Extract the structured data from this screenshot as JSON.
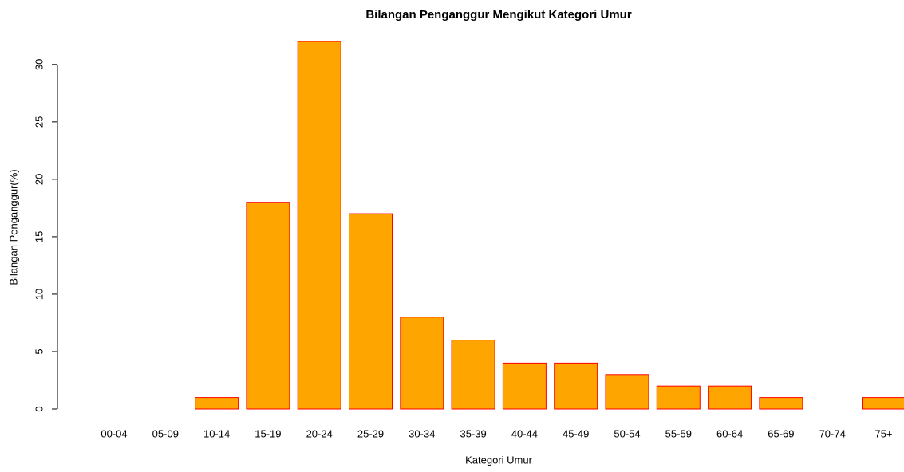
{
  "chart_data": {
    "type": "bar",
    "title": "Bilangan Penganggur Mengikut Kategori Umur",
    "x_label": "Kategori Umur",
    "y_label": "Bilangan Penganggur(%)",
    "categories": [
      "00-04",
      "05-09",
      "10-14",
      "15-19",
      "20-24",
      "25-29",
      "30-34",
      "35-39",
      "40-44",
      "45-49",
      "50-54",
      "55-59",
      "60-64",
      "65-69",
      "70-74",
      "75+"
    ],
    "values": [
      0,
      0,
      1,
      18,
      32,
      17,
      8,
      6,
      4,
      4,
      3,
      2,
      2,
      1,
      0,
      1
    ],
    "color": "#ffa500",
    "edge_color": "#ff0000",
    "ylim": [
      0,
      32
    ],
    "yticks": [
      0,
      5,
      10,
      15,
      20,
      25,
      30
    ],
    "grid": false
  }
}
